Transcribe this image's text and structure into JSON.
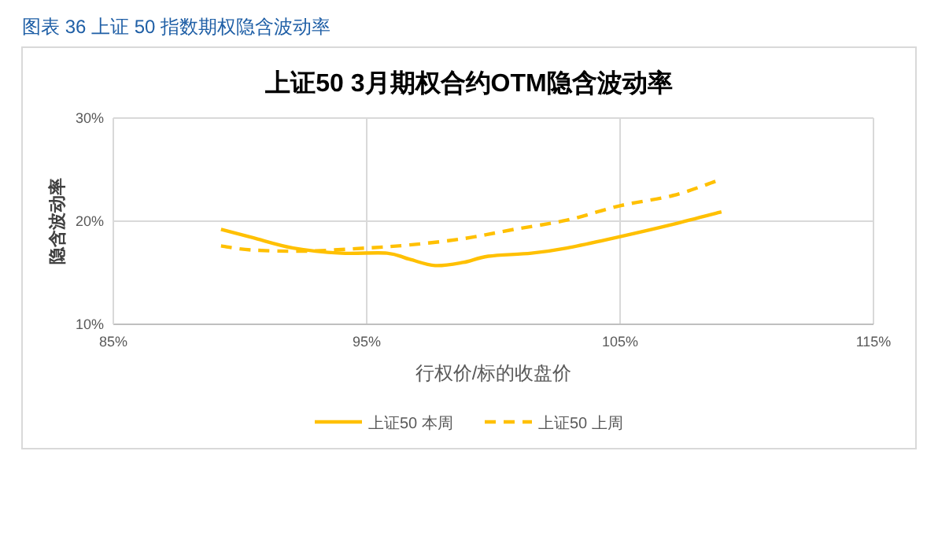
{
  "chart_data": {
    "type": "line",
    "title": "上证50 3月期权合约OTM隐含波动率",
    "xlabel": "行权价/标的收盘价",
    "ylabel": "隐含波动率",
    "annotations": [
      "图表 36 上证 50 指数期权隐含波动率"
    ],
    "xlim": [
      85,
      115
    ],
    "ylim": [
      10,
      30
    ],
    "xticks": [
      {
        "value": 85,
        "label": "85%"
      },
      {
        "value": 95,
        "label": "95%"
      },
      {
        "value": 105,
        "label": "105%"
      },
      {
        "value": 115,
        "label": "115%"
      }
    ],
    "yticks": [
      {
        "value": 10,
        "label": "10%"
      },
      {
        "value": 20,
        "label": "20%"
      },
      {
        "value": 30,
        "label": "30%"
      }
    ],
    "grid": true,
    "legend": "bottom",
    "marker": "none",
    "series": [
      {
        "name": "上证50 本周",
        "color": "#ffc000",
        "line_style": "solid",
        "x": [
          89.25,
          90.5,
          92.1,
          94.0,
          95.8,
          96.7,
          97.7,
          98.8,
          99.8,
          101.5,
          102.9,
          105.0,
          107.1,
          109.0
        ],
        "values": [
          19.2,
          18.4,
          17.4,
          16.9,
          16.9,
          16.3,
          15.7,
          16.0,
          16.6,
          16.9,
          17.4,
          18.5,
          19.7,
          20.9
        ]
      },
      {
        "name": "上证50 上周",
        "color": "#ffc000",
        "line_style": "dashed",
        "x": [
          89.25,
          90.5,
          92.6,
          95.0,
          96.7,
          98.8,
          100.8,
          102.9,
          105.0,
          107.1,
          108.8
        ],
        "values": [
          17.6,
          17.2,
          17.1,
          17.4,
          17.7,
          18.3,
          19.2,
          20.1,
          21.5,
          22.5,
          23.9
        ]
      }
    ]
  }
}
